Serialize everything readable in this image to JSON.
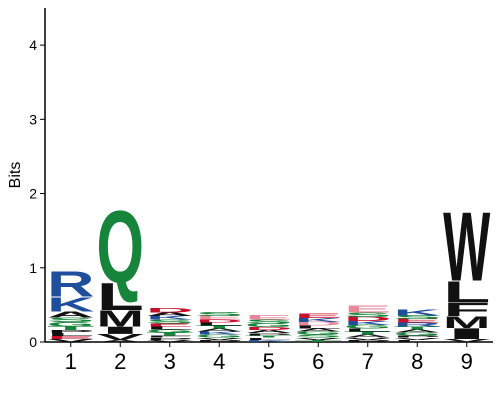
{
  "chart_data": {
    "type": "sequence-logo",
    "ylabel": "Bits",
    "ylim": [
      0,
      4.5
    ],
    "yticks": [
      "0",
      "1",
      "2",
      "3",
      "4"
    ],
    "positions": [
      "1",
      "2",
      "3",
      "4",
      "5",
      "6",
      "7",
      "8",
      "9"
    ],
    "colors": {
      "blue": "#1f4e9c",
      "green": "#16843a",
      "black": "#111111",
      "red": "#c8102e",
      "pink": "#e8879a",
      "teal": "#2f8f83",
      "purple": "#7b5aa6"
    },
    "columns": [
      {
        "position": "1",
        "letters": [
          {
            "char": "R",
            "bits": 0.35,
            "color": "blue"
          },
          {
            "char": "K",
            "bits": 0.2,
            "color": "blue"
          },
          {
            "char": "A",
            "bits": 0.08,
            "color": "black"
          },
          {
            "char": "G",
            "bits": 0.06,
            "color": "green"
          },
          {
            "char": "S",
            "bits": 0.06,
            "color": "green"
          },
          {
            "char": "T",
            "bits": 0.05,
            "color": "green"
          },
          {
            "char": "V",
            "bits": 0.04,
            "color": "black"
          },
          {
            "char": "E",
            "bits": 0.04,
            "color": "red"
          },
          {
            "char": "L",
            "bits": 0.04,
            "color": "black"
          },
          {
            "char": "P",
            "bits": 0.04,
            "color": "black"
          }
        ]
      },
      {
        "position": "2",
        "letters": [
          {
            "char": "Q",
            "bits": 1.0,
            "color": "green"
          },
          {
            "char": "L",
            "bits": 0.38,
            "color": "black"
          },
          {
            "char": "M",
            "bits": 0.22,
            "color": "black"
          },
          {
            "char": "I",
            "bits": 0.1,
            "color": "black"
          },
          {
            "char": "V",
            "bits": 0.08,
            "color": "black"
          },
          {
            "char": "A",
            "bits": 0.03,
            "color": "black"
          }
        ]
      },
      {
        "position": "3",
        "letters": [
          {
            "char": "D",
            "bits": 0.06,
            "color": "red"
          },
          {
            "char": "S",
            "bits": 0.05,
            "color": "green"
          },
          {
            "char": "K",
            "bits": 0.05,
            "color": "blue"
          },
          {
            "char": "A",
            "bits": 0.05,
            "color": "black"
          },
          {
            "char": "T",
            "bits": 0.04,
            "color": "green"
          },
          {
            "char": "G",
            "bits": 0.04,
            "color": "green"
          },
          {
            "char": "L",
            "bits": 0.04,
            "color": "black"
          },
          {
            "char": "E",
            "bits": 0.04,
            "color": "red"
          },
          {
            "char": "V",
            "bits": 0.03,
            "color": "black"
          },
          {
            "char": "P",
            "bits": 0.03,
            "color": "black"
          },
          {
            "char": "F",
            "bits": 0.03,
            "color": "black"
          }
        ]
      },
      {
        "position": "4",
        "letters": [
          {
            "char": "E",
            "bits": 0.05,
            "color": "pink"
          },
          {
            "char": "S",
            "bits": 0.05,
            "color": "green"
          },
          {
            "char": "G",
            "bits": 0.04,
            "color": "green"
          },
          {
            "char": "K",
            "bits": 0.04,
            "color": "blue"
          },
          {
            "char": "A",
            "bits": 0.04,
            "color": "black"
          },
          {
            "char": "T",
            "bits": 0.04,
            "color": "green"
          },
          {
            "char": "L",
            "bits": 0.04,
            "color": "black"
          },
          {
            "char": "D",
            "bits": 0.04,
            "color": "red"
          },
          {
            "char": "P",
            "bits": 0.03,
            "color": "black"
          },
          {
            "char": "V",
            "bits": 0.03,
            "color": "black"
          }
        ]
      },
      {
        "position": "5",
        "letters": [
          {
            "char": "E",
            "bits": 0.06,
            "color": "pink"
          },
          {
            "char": "G",
            "bits": 0.05,
            "color": "green"
          },
          {
            "char": "S",
            "bits": 0.05,
            "color": "green"
          },
          {
            "char": "A",
            "bits": 0.04,
            "color": "black"
          },
          {
            "char": "D",
            "bits": 0.04,
            "color": "red"
          },
          {
            "char": "K",
            "bits": 0.03,
            "color": "blue"
          },
          {
            "char": "L",
            "bits": 0.03,
            "color": "black"
          },
          {
            "char": "T",
            "bits": 0.03,
            "color": "green"
          },
          {
            "char": "P",
            "bits": 0.03,
            "color": "black"
          }
        ]
      },
      {
        "position": "6",
        "letters": [
          {
            "char": "E",
            "bits": 0.06,
            "color": "red"
          },
          {
            "char": "D",
            "bits": 0.05,
            "color": "pink"
          },
          {
            "char": "K",
            "bits": 0.05,
            "color": "blue"
          },
          {
            "char": "S",
            "bits": 0.04,
            "color": "green"
          },
          {
            "char": "G",
            "bits": 0.04,
            "color": "green"
          },
          {
            "char": "A",
            "bits": 0.04,
            "color": "black"
          },
          {
            "char": "L",
            "bits": 0.04,
            "color": "black"
          },
          {
            "char": "T",
            "bits": 0.03,
            "color": "green"
          },
          {
            "char": "V",
            "bits": 0.03,
            "color": "black"
          }
        ]
      },
      {
        "position": "7",
        "letters": [
          {
            "char": "E",
            "bits": 0.1,
            "color": "pink"
          },
          {
            "char": "D",
            "bits": 0.06,
            "color": "red"
          },
          {
            "char": "S",
            "bits": 0.06,
            "color": "green"
          },
          {
            "char": "G",
            "bits": 0.05,
            "color": "green"
          },
          {
            "char": "K",
            "bits": 0.05,
            "color": "blue"
          },
          {
            "char": "A",
            "bits": 0.04,
            "color": "black"
          },
          {
            "char": "T",
            "bits": 0.04,
            "color": "green"
          },
          {
            "char": "L",
            "bits": 0.04,
            "color": "black"
          },
          {
            "char": "P",
            "bits": 0.03,
            "color": "black"
          },
          {
            "char": "V",
            "bits": 0.03,
            "color": "black"
          }
        ]
      },
      {
        "position": "8",
        "letters": [
          {
            "char": "K",
            "bits": 0.08,
            "color": "blue"
          },
          {
            "char": "R",
            "bits": 0.05,
            "color": "blue"
          },
          {
            "char": "E",
            "bits": 0.05,
            "color": "red"
          },
          {
            "char": "S",
            "bits": 0.05,
            "color": "green"
          },
          {
            "char": "G",
            "bits": 0.04,
            "color": "green"
          },
          {
            "char": "A",
            "bits": 0.04,
            "color": "black"
          },
          {
            "char": "T",
            "bits": 0.04,
            "color": "green"
          },
          {
            "char": "L",
            "bits": 0.03,
            "color": "black"
          },
          {
            "char": "V",
            "bits": 0.03,
            "color": "black"
          },
          {
            "char": "P",
            "bits": 0.03,
            "color": "black"
          }
        ]
      },
      {
        "position": "9",
        "letters": [
          {
            "char": "W",
            "bits": 0.95,
            "color": "black"
          },
          {
            "char": "L",
            "bits": 0.3,
            "color": "black"
          },
          {
            "char": "F",
            "bits": 0.18,
            "color": "black"
          },
          {
            "char": "I",
            "bits": 0.15,
            "color": "black"
          },
          {
            "char": "M",
            "bits": 0.16,
            "color": "black"
          },
          {
            "char": "V",
            "bits": 0.04,
            "color": "black"
          }
        ]
      }
    ]
  }
}
